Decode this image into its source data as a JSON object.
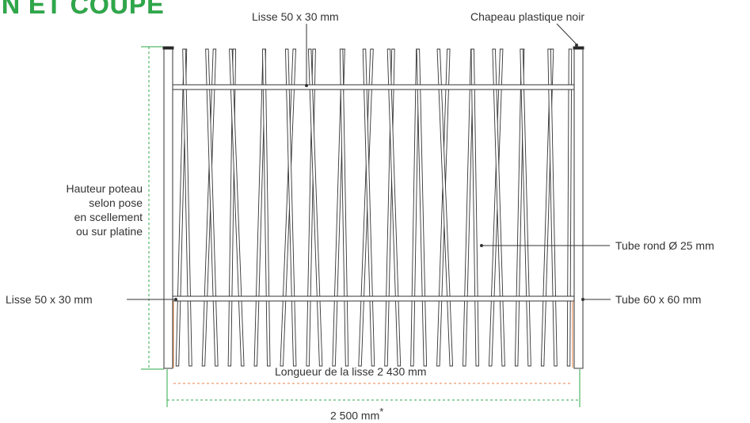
{
  "heading": "N ET COUPE",
  "colors": {
    "accent_green": "#2ea84a",
    "dimension_orange": "#e8804a",
    "line": "#333333",
    "text": "#333333"
  },
  "labels": {
    "top_rail": "Lisse 50 x 30 mm",
    "cap": "Chapeau plastique noir",
    "post_height": [
      "Hauteur poteau",
      "selon pose",
      "en scellement",
      "ou sur platine"
    ],
    "bottom_rail": "Lisse 50 x 30 mm",
    "round_tube": "Tube rond Ø 25 mm",
    "post_tube": "Tube 60 x 60 mm",
    "rail_length": "Longueur de la lisse 2 430 mm",
    "total_width": "2 500 mm",
    "total_width_note": "*"
  }
}
